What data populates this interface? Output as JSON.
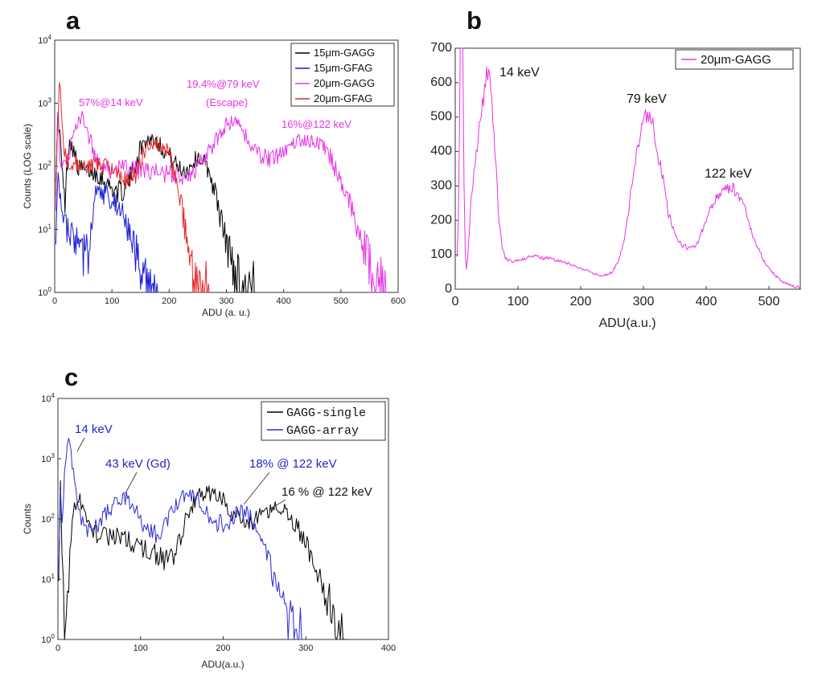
{
  "chart_data": [
    {
      "panel": "a",
      "type": "line",
      "xlabel": "ADU (a. u.)",
      "ylabel": "Counts (LOG scale)",
      "yscale": "log",
      "xlim": [
        0,
        600
      ],
      "ylim": [
        1,
        10000
      ],
      "x_ticks": [
        "0",
        "100",
        "200",
        "300",
        "400",
        "500",
        "600"
      ],
      "y_ticks": [
        {
          "base": "10",
          "exp": "0"
        },
        {
          "base": "10",
          "exp": "1"
        },
        {
          "base": "10",
          "exp": "2"
        },
        {
          "base": "10",
          "exp": "3"
        },
        {
          "base": "10",
          "exp": "4"
        }
      ],
      "legend": [
        "15μm-GAGG",
        "15μm-GFAG",
        "20μm-GAGG",
        "20μm-GFAG"
      ],
      "legend_position": "top-right",
      "annotations": [
        "57%@14 keV",
        "19.4%@79 keV",
        "(Escape)",
        "16%@122 keV"
      ],
      "series": [
        {
          "name": "15μm-GAGG",
          "color": "#000000",
          "x": [
            2,
            6,
            10,
            14,
            18,
            22,
            26,
            30,
            35,
            40,
            45,
            50,
            55,
            60,
            70,
            80,
            90,
            100,
            110,
            120,
            130,
            140,
            150,
            160,
            170,
            180,
            190,
            200,
            210,
            220,
            230,
            240,
            250,
            260,
            270,
            280,
            290,
            300,
            310,
            320,
            330,
            340,
            350
          ],
          "y": [
            80,
            600,
            250,
            60,
            25,
            120,
            260,
            220,
            150,
            100,
            90,
            90,
            80,
            85,
            80,
            70,
            55,
            45,
            40,
            40,
            60,
            100,
            200,
            260,
            280,
            250,
            180,
            150,
            110,
            90,
            85,
            110,
            140,
            120,
            80,
            40,
            15,
            6,
            3,
            1.5,
            1.2,
            1,
            1
          ]
        },
        {
          "name": "15μm-GFAG",
          "color": "#1a1adc",
          "x": [
            2,
            6,
            10,
            15,
            20,
            30,
            40,
            50,
            60,
            65,
            70,
            75,
            80,
            90,
            100,
            110,
            120,
            130,
            140,
            150,
            160,
            170,
            180
          ],
          "y": [
            10,
            60,
            25,
            15,
            10,
            8,
            5,
            4,
            4,
            10,
            30,
            45,
            40,
            35,
            30,
            25,
            15,
            8,
            4,
            2,
            1.3,
            1,
            1
          ]
        },
        {
          "name": "20μm-GAGG",
          "color": "#e833e8",
          "x": [
            2,
            5,
            8,
            12,
            16,
            20,
            25,
            30,
            35,
            40,
            45,
            50,
            55,
            60,
            70,
            80,
            90,
            100,
            120,
            140,
            160,
            180,
            200,
            220,
            240,
            260,
            280,
            300,
            310,
            320,
            340,
            360,
            380,
            400,
            420,
            440,
            460,
            480,
            500,
            520,
            540,
            560,
            570,
            580
          ],
          "y": [
            30,
            600,
            200,
            100,
            90,
            100,
            150,
            250,
            400,
            550,
            600,
            550,
            450,
            300,
            150,
            100,
            90,
            90,
            90,
            90,
            85,
            80,
            75,
            70,
            80,
            120,
            250,
            450,
            500,
            450,
            250,
            150,
            130,
            170,
            250,
            280,
            250,
            150,
            60,
            20,
            5,
            1.5,
            1.2,
            1
          ]
        },
        {
          "name": "20μm-GFAG",
          "color": "#e62828",
          "x": [
            2,
            5,
            8,
            10,
            13,
            16,
            20,
            30,
            40,
            50,
            60,
            70,
            80,
            90,
            100,
            110,
            120,
            130,
            140,
            150,
            160,
            170,
            180,
            190,
            200,
            210,
            220,
            230,
            240,
            250,
            260,
            270
          ],
          "y": [
            50,
            400,
            2200,
            1500,
            500,
            200,
            120,
            110,
            110,
            100,
            100,
            100,
            105,
            100,
            95,
            80,
            60,
            55,
            70,
            120,
            200,
            250,
            240,
            200,
            150,
            80,
            30,
            8,
            2,
            1.2,
            1,
            1
          ]
        }
      ]
    },
    {
      "panel": "b",
      "type": "line",
      "xlabel": "ADU(a.u.)",
      "ylabel": "",
      "yscale": "linear",
      "xlim": [
        0,
        550
      ],
      "ylim": [
        0,
        700
      ],
      "x_ticks": [
        "0",
        "100",
        "200",
        "300",
        "400",
        "500"
      ],
      "y_ticks": [
        "0",
        "100",
        "200",
        "300",
        "400",
        "500",
        "600",
        "700"
      ],
      "legend": [
        "20μm-GAGG"
      ],
      "legend_position": "top-right",
      "annotations": [
        "14 keV",
        "79 keV",
        "122 keV"
      ],
      "series": [
        {
          "name": "20μm-GAGG",
          "color": "#e833e8",
          "x": [
            3,
            5,
            8,
            10,
            12,
            14,
            16,
            18,
            20,
            25,
            30,
            35,
            40,
            45,
            50,
            55,
            60,
            65,
            70,
            75,
            80,
            90,
            100,
            110,
            120,
            130,
            140,
            150,
            160,
            170,
            180,
            190,
            200,
            210,
            220,
            230,
            240,
            250,
            260,
            270,
            280,
            290,
            300,
            305,
            310,
            315,
            320,
            330,
            340,
            350,
            360,
            370,
            380,
            390,
            400,
            410,
            420,
            430,
            440,
            450,
            460,
            470,
            480,
            490,
            500,
            510,
            520,
            530,
            540,
            550
          ],
          "y": [
            100,
            200,
            700,
            700,
            700,
            300,
            100,
            60,
            100,
            250,
            350,
            420,
            480,
            560,
            610,
            600,
            500,
            350,
            200,
            120,
            90,
            80,
            85,
            90,
            95,
            95,
            90,
            90,
            85,
            80,
            75,
            65,
            60,
            55,
            45,
            40,
            40,
            50,
            80,
            150,
            280,
            400,
            480,
            500,
            510,
            480,
            420,
            330,
            220,
            160,
            130,
            120,
            120,
            150,
            200,
            250,
            270,
            290,
            300,
            280,
            240,
            180,
            130,
            90,
            60,
            40,
            25,
            15,
            8,
            5
          ]
        }
      ]
    },
    {
      "panel": "c",
      "type": "line",
      "xlabel": "ADU(a.u.)",
      "ylabel": "Counts",
      "yscale": "log",
      "xlim": [
        0,
        400
      ],
      "ylim": [
        1,
        10000
      ],
      "x_ticks": [
        "0",
        "100",
        "200",
        "300",
        "400"
      ],
      "y_ticks": [
        {
          "base": "10",
          "exp": "0"
        },
        {
          "base": "10",
          "exp": "1"
        },
        {
          "base": "10",
          "exp": "2"
        },
        {
          "base": "10",
          "exp": "3"
        },
        {
          "base": "10",
          "exp": "4"
        }
      ],
      "legend": [
        "GAGG-single",
        "GAGG-array"
      ],
      "legend_position": "top-right",
      "annotations": [
        "14 keV",
        "43 keV (Gd)",
        "18% @ 122 keV",
        "16 % @ 122 keV"
      ],
      "series": [
        {
          "name": "GAGG-single",
          "color": "#000000",
          "x": [
            1,
            3,
            5,
            8,
            10,
            13,
            16,
            20,
            25,
            30,
            35,
            40,
            50,
            60,
            70,
            80,
            90,
            100,
            110,
            120,
            130,
            140,
            150,
            160,
            170,
            180,
            190,
            200,
            210,
            220,
            230,
            240,
            250,
            260,
            270,
            280,
            290,
            300,
            310,
            320,
            330,
            340,
            345,
            350
          ],
          "y": [
            15,
            500,
            30,
            1,
            2,
            10,
            50,
            150,
            250,
            150,
            80,
            60,
            55,
            50,
            50,
            50,
            40,
            35,
            30,
            25,
            20,
            25,
            60,
            150,
            250,
            270,
            250,
            200,
            130,
            100,
            80,
            100,
            130,
            150,
            140,
            110,
            70,
            40,
            18,
            7,
            3,
            1.5,
            1.2,
            1
          ]
        },
        {
          "name": "GAGG-array",
          "color": "#2a2ad6",
          "x": [
            1,
            3,
            5,
            8,
            10,
            13,
            16,
            20,
            25,
            30,
            40,
            50,
            60,
            70,
            80,
            90,
            100,
            110,
            120,
            130,
            140,
            150,
            160,
            170,
            180,
            190,
            200,
            210,
            220,
            230,
            240,
            250,
            260,
            270,
            280,
            290,
            295
          ],
          "y": [
            20,
            300,
            100,
            500,
            1200,
            1700,
            1200,
            400,
            150,
            80,
            65,
            80,
            130,
            200,
            220,
            170,
            100,
            60,
            55,
            80,
            150,
            240,
            250,
            200,
            130,
            90,
            80,
            100,
            130,
            120,
            70,
            30,
            12,
            5,
            2.5,
            1.3,
            1
          ]
        }
      ]
    }
  ]
}
